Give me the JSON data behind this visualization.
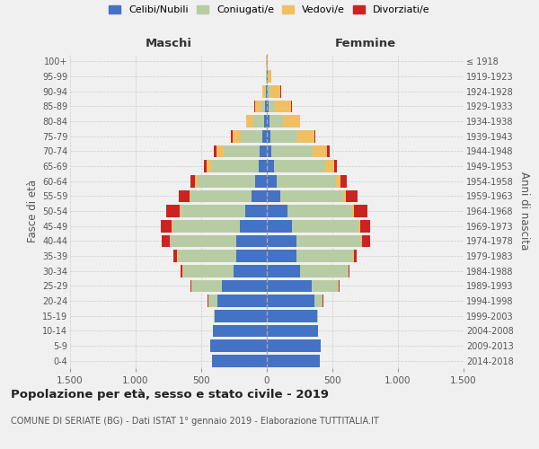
{
  "age_groups": [
    "0-4",
    "5-9",
    "10-14",
    "15-19",
    "20-24",
    "25-29",
    "30-34",
    "35-39",
    "40-44",
    "45-49",
    "50-54",
    "55-59",
    "60-64",
    "65-69",
    "70-74",
    "75-79",
    "80-84",
    "85-89",
    "90-94",
    "95-99",
    "100+"
  ],
  "birth_years": [
    "2014-2018",
    "2009-2013",
    "2004-2008",
    "1999-2003",
    "1994-1998",
    "1989-1993",
    "1984-1988",
    "1979-1983",
    "1974-1978",
    "1969-1973",
    "1964-1968",
    "1959-1963",
    "1954-1958",
    "1949-1953",
    "1944-1948",
    "1939-1943",
    "1934-1938",
    "1929-1933",
    "1924-1928",
    "1919-1923",
    "≤ 1918"
  ],
  "colors": {
    "celibi": "#4472c4",
    "coniugati": "#b8cca4",
    "vedovi": "#f0c060",
    "divorziati": "#cc2222"
  },
  "males": {
    "celibi": [
      420,
      430,
      410,
      400,
      375,
      345,
      255,
      235,
      235,
      205,
      165,
      115,
      90,
      62,
      52,
      32,
      20,
      12,
      5,
      3,
      2
    ],
    "coniugati": [
      0,
      0,
      0,
      5,
      70,
      230,
      385,
      445,
      505,
      515,
      495,
      465,
      435,
      360,
      280,
      170,
      80,
      30,
      10,
      2,
      0
    ],
    "vedovi": [
      0,
      0,
      0,
      0,
      2,
      2,
      2,
      2,
      3,
      5,
      5,
      10,
      20,
      35,
      50,
      60,
      55,
      50,
      20,
      5,
      2
    ],
    "divorziati": [
      0,
      0,
      0,
      0,
      5,
      5,
      15,
      30,
      60,
      80,
      100,
      80,
      40,
      25,
      20,
      10,
      5,
      5,
      2,
      0,
      0
    ]
  },
  "females": {
    "celibi": [
      405,
      410,
      390,
      385,
      365,
      345,
      255,
      225,
      225,
      195,
      155,
      105,
      72,
      52,
      37,
      25,
      20,
      15,
      10,
      5,
      3
    ],
    "coniugati": [
      0,
      0,
      0,
      5,
      60,
      200,
      365,
      435,
      495,
      505,
      495,
      475,
      455,
      395,
      315,
      205,
      100,
      50,
      15,
      2,
      0
    ],
    "vedovi": [
      0,
      0,
      0,
      0,
      2,
      2,
      3,
      3,
      5,
      10,
      15,
      20,
      35,
      70,
      110,
      130,
      130,
      120,
      80,
      30,
      5
    ],
    "divorziati": [
      0,
      0,
      0,
      0,
      2,
      5,
      10,
      25,
      60,
      80,
      100,
      90,
      50,
      20,
      15,
      10,
      5,
      5,
      2,
      0,
      0
    ]
  },
  "title": "Popolazione per età, sesso e stato civile - 2019",
  "subtitle": "COMUNE DI SERIATE (BG) - Dati ISTAT 1° gennaio 2019 - Elaborazione TUTTITALIA.IT",
  "ylabel_left": "Fasce di età",
  "ylabel_right": "Anni di nascita",
  "xlabel_left": "Maschi",
  "xlabel_right": "Femmine",
  "xlim": 1500,
  "legend_labels": [
    "Celibi/Nubili",
    "Coniugati/e",
    "Vedovi/e",
    "Divorziati/e"
  ],
  "background_color": "#f0f0f0"
}
